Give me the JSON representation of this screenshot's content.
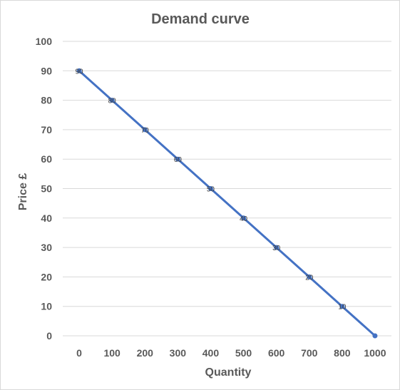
{
  "chart_data": {
    "type": "line",
    "title": "Demand curve",
    "xlabel": "Quantity",
    "ylabel": "Price £",
    "x_categories": [
      "0",
      "100",
      "200",
      "300",
      "400",
      "500",
      "600",
      "700",
      "800",
      "1000"
    ],
    "y_ticks": [
      0,
      10,
      20,
      30,
      40,
      50,
      60,
      70,
      80,
      90,
      100
    ],
    "ylim": [
      0,
      100
    ],
    "grid": "horizontal",
    "legend": "none",
    "series": [
      {
        "values": [
          90,
          80,
          70,
          60,
          50,
          40,
          30,
          20,
          10,
          0
        ],
        "data_labels": [
          "90",
          "80",
          "70",
          "60",
          "50",
          "40",
          "30",
          "20",
          "10",
          ""
        ],
        "color": "#4472c4"
      }
    ]
  }
}
